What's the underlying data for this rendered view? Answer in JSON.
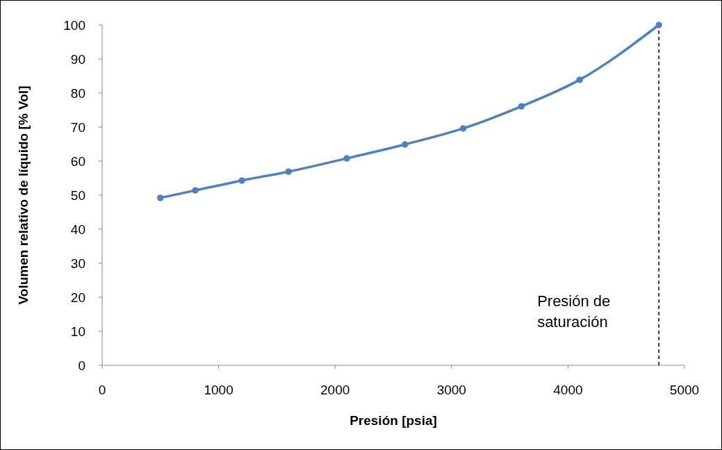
{
  "chart_data": {
    "type": "line",
    "xlabel": "Presión [psia]",
    "ylabel": "Volumen relativo de líquido [% Vol]",
    "x": [
      500,
      800,
      1200,
      1600,
      2100,
      2600,
      3100,
      3600,
      4100,
      4780
    ],
    "series": [
      {
        "color": "#4f81bd",
        "values": [
          49.2,
          51.4,
          54.3,
          56.9,
          60.8,
          64.9,
          69.6,
          76.1,
          83.9,
          100
        ]
      }
    ],
    "xlim": [
      0,
      5000
    ],
    "xticks": [
      0,
      1000,
      2000,
      3000,
      4000,
      5000
    ],
    "ylim": [
      0,
      100
    ],
    "yticks": [
      0,
      10,
      20,
      30,
      40,
      50,
      60,
      70,
      80,
      90,
      100
    ],
    "grid": false,
    "marker": "circle",
    "line_style": "solid",
    "ref_lines": [
      {
        "axis": "x",
        "value": 4780,
        "label": "Presión de saturación",
        "color": "#000000",
        "line_style": "dashed"
      }
    ]
  }
}
